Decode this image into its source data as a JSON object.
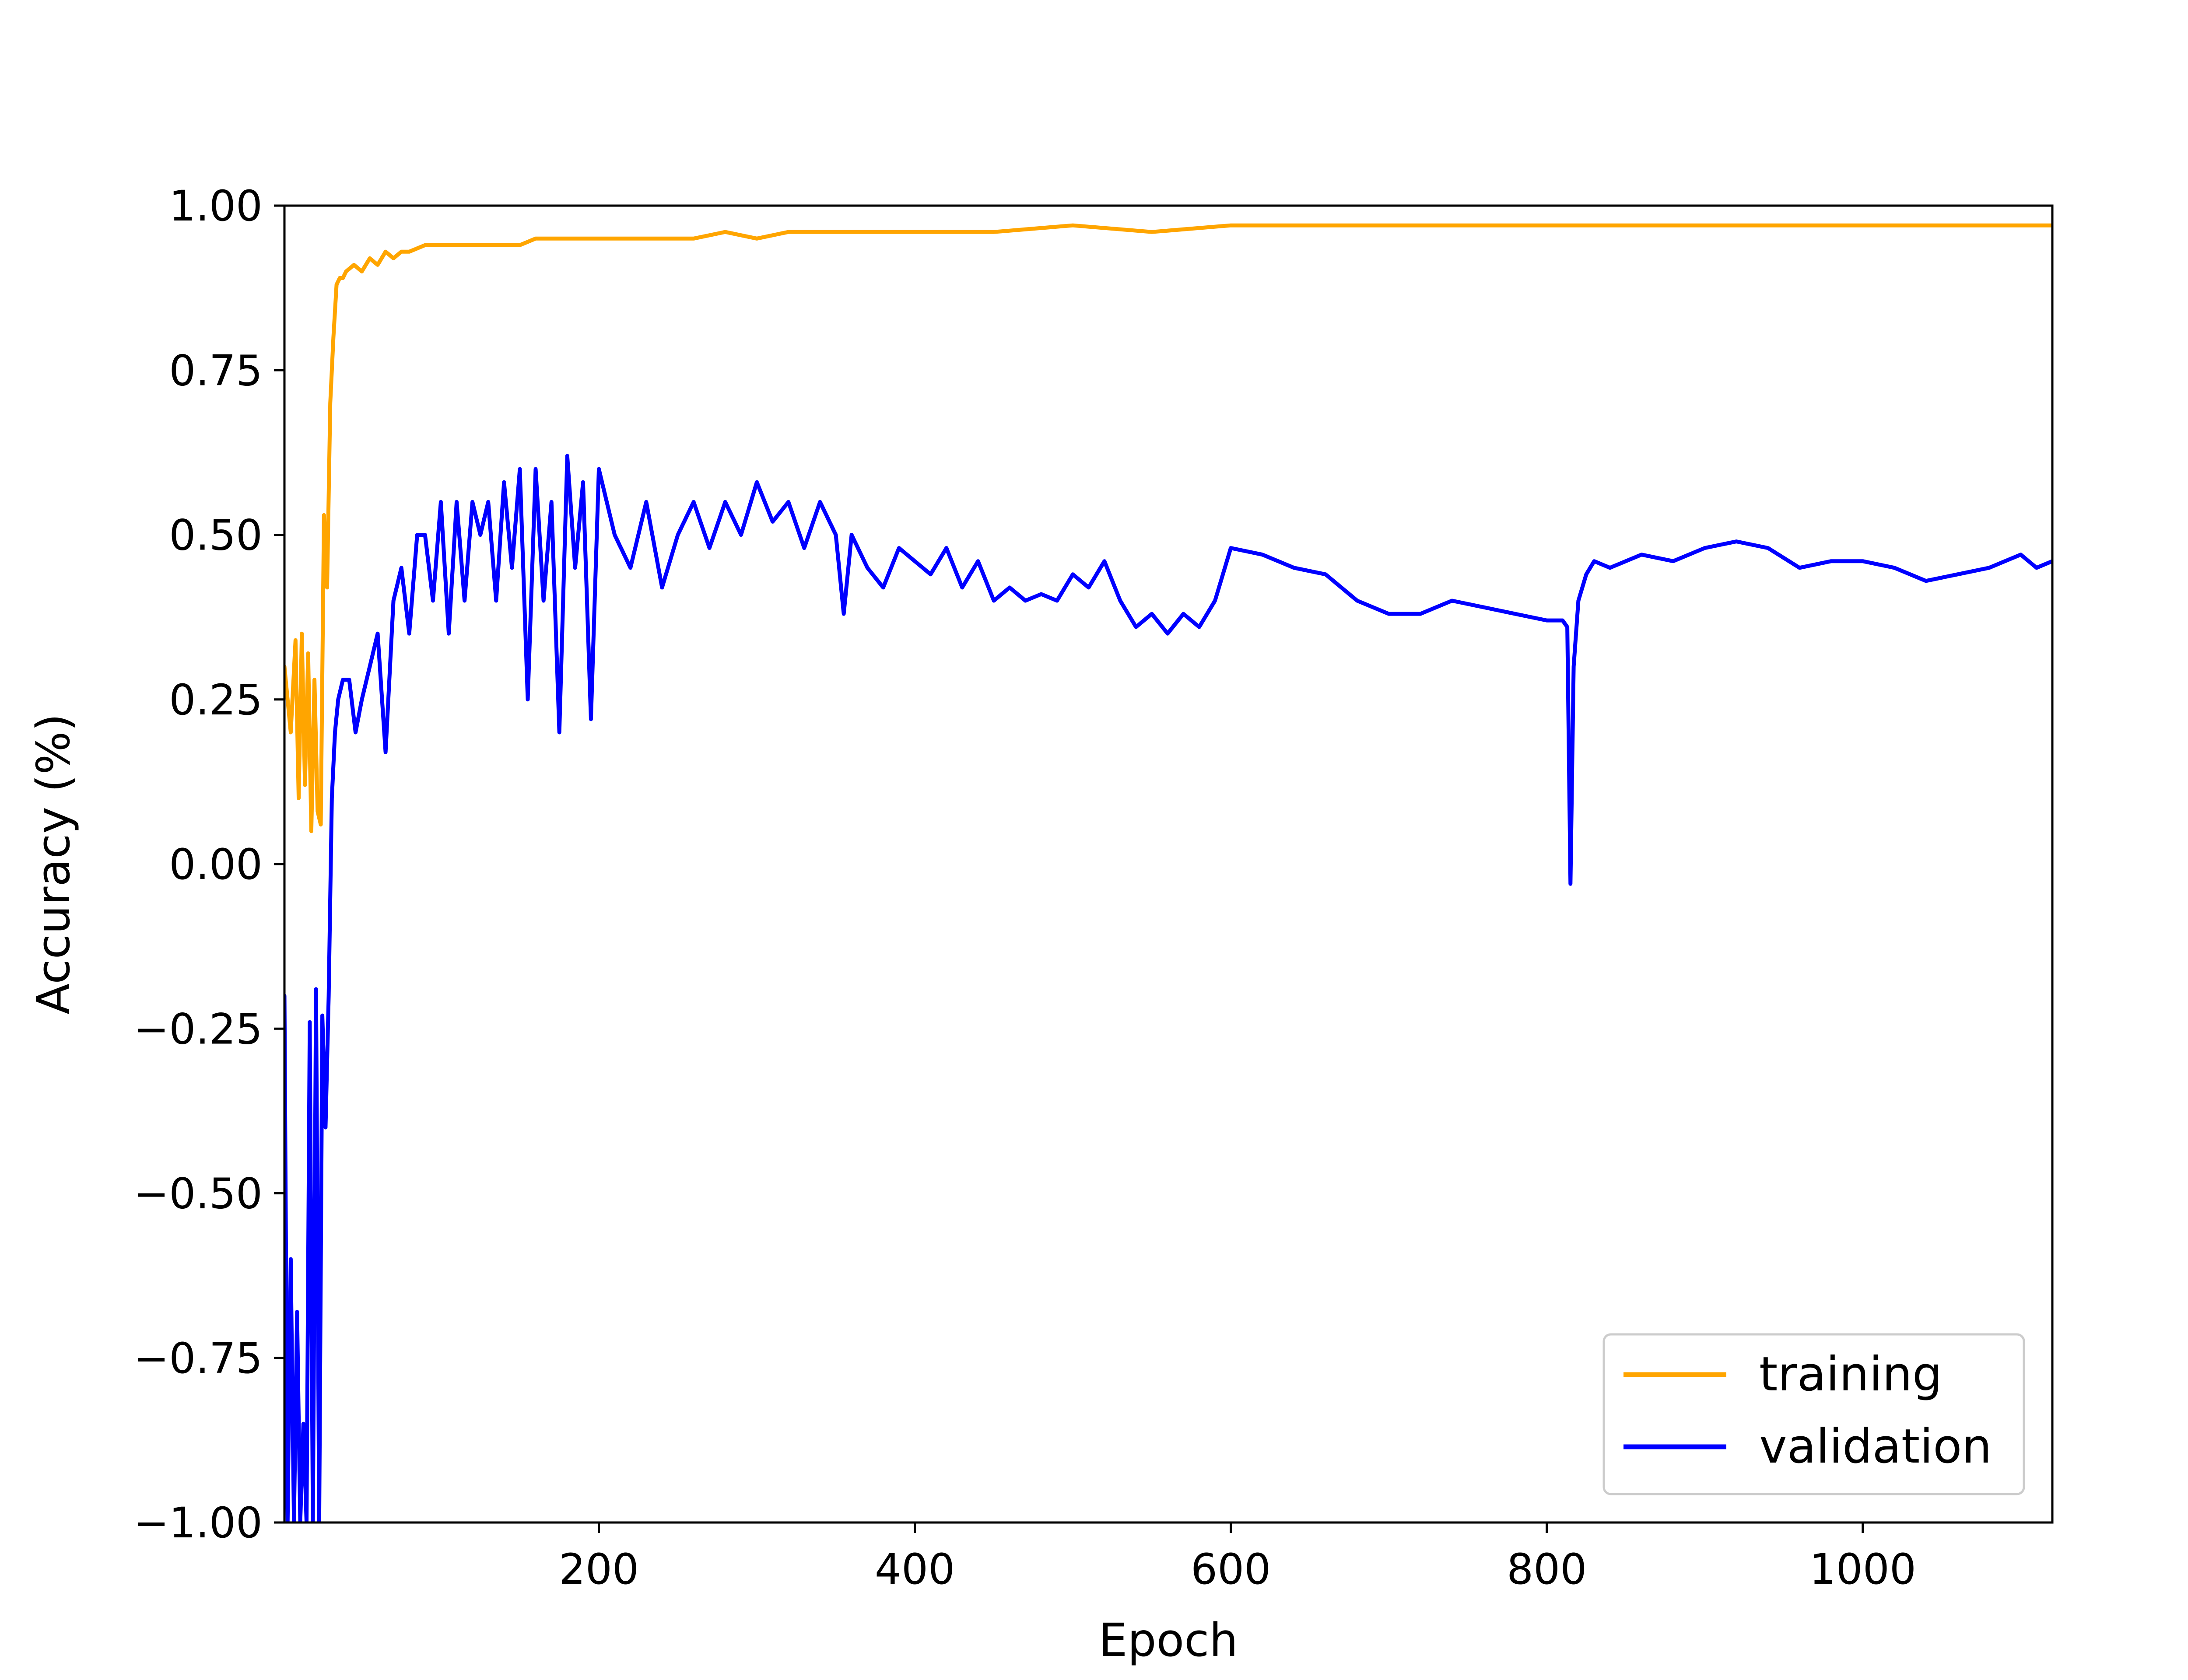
{
  "chart_data": {
    "type": "line",
    "title": "",
    "xlabel": "Epoch",
    "ylabel": "Accuracy (%)",
    "xlim": [
      1,
      1120
    ],
    "ylim": [
      -1.0,
      1.0
    ],
    "xticks": [
      200,
      400,
      600,
      800,
      1000
    ],
    "yticks": [
      -1.0,
      -0.75,
      -0.5,
      -0.25,
      0.0,
      0.25,
      0.5,
      0.75,
      1.0
    ],
    "xtick_labels": [
      "200",
      "400",
      "600",
      "800",
      "1000"
    ],
    "ytick_labels": [
      "−1.00",
      "−0.75",
      "−0.50",
      "−0.25",
      "0.00",
      "0.25",
      "0.50",
      "0.75",
      "1.00"
    ],
    "grid": false,
    "legend_position": "lower right",
    "series": [
      {
        "name": "training",
        "color": "#ffa500",
        "x": [
          1,
          5,
          8,
          10,
          12,
          14,
          16,
          18,
          20,
          22,
          24,
          26,
          28,
          30,
          32,
          34,
          36,
          38,
          40,
          45,
          50,
          55,
          60,
          65,
          70,
          75,
          80,
          90,
          100,
          110,
          120,
          130,
          140,
          150,
          160,
          170,
          180,
          190,
          200,
          220,
          240,
          260,
          280,
          300,
          320,
          340,
          360,
          380,
          400,
          450,
          500,
          550,
          600,
          650,
          700,
          750,
          800,
          850,
          900,
          950,
          1000,
          1050,
          1100,
          1120
        ],
        "y": [
          0.3,
          0.2,
          0.34,
          0.1,
          0.35,
          0.12,
          0.32,
          0.05,
          0.28,
          0.08,
          0.06,
          0.53,
          0.42,
          0.7,
          0.8,
          0.88,
          0.89,
          0.89,
          0.9,
          0.91,
          0.9,
          0.92,
          0.91,
          0.93,
          0.92,
          0.93,
          0.93,
          0.94,
          0.94,
          0.94,
          0.94,
          0.94,
          0.94,
          0.94,
          0.95,
          0.95,
          0.95,
          0.95,
          0.95,
          0.95,
          0.95,
          0.95,
          0.96,
          0.95,
          0.96,
          0.96,
          0.96,
          0.96,
          0.96,
          0.96,
          0.97,
          0.96,
          0.97,
          0.97,
          0.97,
          0.97,
          0.97,
          0.97,
          0.97,
          0.97,
          0.97,
          0.97,
          0.97,
          0.97
        ]
      },
      {
        "name": "validation",
        "color": "#0000ff",
        "x": [
          1,
          3,
          5,
          7,
          9,
          11,
          13,
          15,
          17,
          19,
          21,
          23,
          25,
          27,
          29,
          31,
          33,
          35,
          38,
          42,
          46,
          50,
          55,
          60,
          65,
          70,
          75,
          80,
          85,
          90,
          95,
          100,
          105,
          110,
          115,
          120,
          125,
          130,
          135,
          140,
          145,
          150,
          155,
          160,
          165,
          170,
          175,
          180,
          185,
          190,
          195,
          200,
          210,
          220,
          230,
          240,
          250,
          260,
          270,
          280,
          290,
          300,
          310,
          320,
          330,
          340,
          350,
          355,
          360,
          370,
          380,
          390,
          400,
          410,
          420,
          430,
          440,
          450,
          460,
          470,
          480,
          490,
          500,
          510,
          520,
          530,
          540,
          550,
          560,
          570,
          580,
          590,
          600,
          620,
          640,
          660,
          680,
          700,
          720,
          740,
          760,
          780,
          800,
          810,
          813,
          815,
          817,
          820,
          825,
          830,
          840,
          860,
          880,
          900,
          920,
          940,
          960,
          980,
          1000,
          1020,
          1040,
          1060,
          1080,
          1100,
          1110,
          1120
        ],
        "y": [
          -0.2,
          -1.0,
          -0.6,
          -1.0,
          -0.68,
          -1.0,
          -0.85,
          -1.0,
          -0.24,
          -1.0,
          -0.19,
          -1.0,
          -0.23,
          -0.4,
          -0.2,
          0.1,
          0.2,
          0.25,
          0.28,
          0.28,
          0.2,
          0.25,
          0.3,
          0.35,
          0.17,
          0.4,
          0.45,
          0.35,
          0.5,
          0.5,
          0.4,
          0.55,
          0.35,
          0.55,
          0.4,
          0.55,
          0.5,
          0.55,
          0.4,
          0.58,
          0.45,
          0.6,
          0.25,
          0.6,
          0.4,
          0.55,
          0.2,
          0.62,
          0.45,
          0.58,
          0.22,
          0.6,
          0.5,
          0.45,
          0.55,
          0.42,
          0.5,
          0.55,
          0.48,
          0.55,
          0.5,
          0.58,
          0.52,
          0.55,
          0.48,
          0.55,
          0.5,
          0.38,
          0.5,
          0.45,
          0.42,
          0.48,
          0.46,
          0.44,
          0.48,
          0.42,
          0.46,
          0.4,
          0.42,
          0.4,
          0.41,
          0.4,
          0.44,
          0.42,
          0.46,
          0.4,
          0.36,
          0.38,
          0.35,
          0.38,
          0.36,
          0.4,
          0.48,
          0.47,
          0.45,
          0.44,
          0.4,
          0.38,
          0.38,
          0.4,
          0.39,
          0.38,
          0.37,
          0.37,
          0.36,
          -0.03,
          0.3,
          0.4,
          0.44,
          0.46,
          0.45,
          0.47,
          0.46,
          0.48,
          0.49,
          0.48,
          0.45,
          0.46,
          0.46,
          0.45,
          0.43,
          0.44,
          0.45,
          0.47,
          0.45,
          0.46
        ]
      }
    ]
  }
}
